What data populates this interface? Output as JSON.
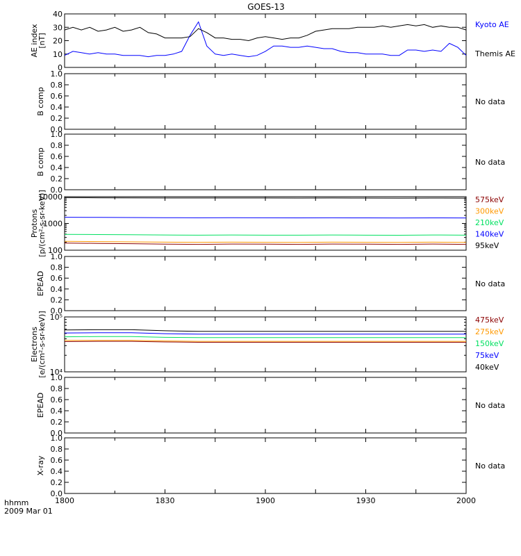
{
  "title": "GOES-13",
  "time_axis": {
    "ticks": [
      "1800",
      "1830",
      "1900",
      "1930",
      "2000"
    ],
    "corner_label": "hhmm",
    "date_label": "2009 Mar 01"
  },
  "chart_data": [
    {
      "type": "line",
      "panel": "ae",
      "ylabel": [
        "AE index",
        "[nT]"
      ],
      "ylim": [
        0,
        40
      ],
      "yticks": [
        "0",
        "10",
        "20",
        "30",
        "40"
      ],
      "x": [
        0,
        5,
        10,
        15,
        20,
        25,
        30,
        35,
        40,
        45,
        50,
        55,
        60,
        65,
        70,
        75,
        80,
        85,
        90,
        95,
        100,
        105,
        110,
        115,
        120,
        125,
        130,
        135,
        140,
        145,
        150,
        155,
        160,
        165,
        170,
        175,
        180,
        185,
        190,
        195,
        200,
        205,
        210,
        215,
        220,
        225,
        230,
        235,
        240
      ],
      "x_note": "minutes after 18:00",
      "series": [
        {
          "name": "Kyoto AE",
          "color": "#0000ff",
          "values": [
            9,
            12,
            11,
            10,
            11,
            10,
            10,
            9,
            9,
            9,
            8,
            9,
            9,
            10,
            12,
            24,
            34,
            16,
            10,
            9,
            10,
            9,
            8,
            9,
            12,
            16,
            16,
            15,
            15,
            16,
            15,
            14,
            14,
            12,
            11,
            11,
            10,
            10,
            10,
            9,
            9,
            13,
            13,
            12,
            13,
            12,
            18,
            15,
            9
          ]
        },
        {
          "name": "Themis AE",
          "color": "#000000",
          "values": [
            28,
            30,
            28,
            30,
            27,
            28,
            30,
            27,
            28,
            30,
            26,
            25,
            22,
            22,
            22,
            23,
            29,
            26,
            22,
            22,
            21,
            21,
            20,
            22,
            23,
            22,
            21,
            22,
            22,
            24,
            27,
            28,
            29,
            29,
            29,
            30,
            30,
            30,
            31,
            30,
            31,
            32,
            31,
            32,
            30,
            31,
            30,
            30,
            28
          ]
        }
      ],
      "legend": [
        "Kyoto AE",
        "Themis AE"
      ]
    },
    {
      "type": "line",
      "panel": "empty",
      "ylabel": [
        "B comp"
      ],
      "ylim": [
        0,
        1
      ],
      "yticks": [
        "0.0",
        "0.2",
        "0.4",
        "0.6",
        "0.8",
        "1.0"
      ],
      "note": "No data"
    },
    {
      "type": "line",
      "panel": "empty",
      "ylabel": [
        "B comp"
      ],
      "ylim": [
        0,
        1
      ],
      "yticks": [
        "0.0",
        "0.2",
        "0.4",
        "0.6",
        "0.8",
        "1.0"
      ],
      "note": "No data"
    },
    {
      "type": "line",
      "panel": "log",
      "ylabel": [
        "Protons",
        "[p/(cm²-s-sr-keV)]"
      ],
      "ylog": true,
      "ylim": [
        100,
        10000
      ],
      "yticks": [
        {
          "v": 100,
          "label": "100"
        },
        {
          "v": 1000,
          "label": "1000"
        },
        {
          "v": 10000,
          "label": "10000"
        }
      ],
      "x": [
        0,
        20,
        40,
        60,
        80,
        100,
        120,
        140,
        160,
        180,
        200,
        220,
        240
      ],
      "series": [
        {
          "name": "575keV",
          "color": "#8b0000",
          "values": [
            185,
            180,
            175,
            168,
            165,
            170,
            168,
            165,
            170,
            168,
            165,
            170,
            165
          ]
        },
        {
          "name": "300keV",
          "color": "#ff9900",
          "values": [
            215,
            210,
            205,
            200,
            198,
            200,
            198,
            196,
            200,
            198,
            196,
            200,
            196
          ]
        },
        {
          "name": "210keV",
          "color": "#00e060",
          "values": [
            390,
            385,
            380,
            370,
            365,
            370,
            365,
            365,
            370,
            365,
            362,
            370,
            365
          ]
        },
        {
          "name": "140keV",
          "color": "#0000ff",
          "values": [
            1700,
            1680,
            1660,
            1640,
            1620,
            1630,
            1620,
            1610,
            1620,
            1610,
            1600,
            1610,
            1600
          ]
        },
        {
          "name": "95keV",
          "color": "#000000",
          "values": [
            9200,
            9100,
            9000,
            8900,
            8900,
            8950,
            8900,
            8850,
            8900,
            8850,
            8800,
            8850,
            8800
          ]
        }
      ],
      "legend": [
        "575keV",
        "300keV",
        "210keV",
        "140keV",
        "95keV"
      ]
    },
    {
      "type": "line",
      "panel": "empty",
      "ylabel": [
        "EPEAD"
      ],
      "ylim": [
        0,
        1
      ],
      "yticks": [
        "0.0",
        "0.2",
        "0.4",
        "0.6",
        "0.8",
        "1.0"
      ],
      "note": "No data"
    },
    {
      "type": "line",
      "panel": "log",
      "ylabel": [
        "Electrons",
        "[e/(cm²-s-sr-keV)]"
      ],
      "ylog": true,
      "ylim": [
        10000,
        100000
      ],
      "yticks": [
        {
          "v": 10000,
          "label": "10⁴"
        },
        {
          "v": 100000,
          "label": "10⁵"
        }
      ],
      "x": [
        0,
        20,
        40,
        60,
        80,
        100,
        120,
        140,
        160,
        180,
        200,
        220,
        240
      ],
      "series": [
        {
          "name": "475keV",
          "color": "#8b0000",
          "values": [
            35500,
            36000,
            36000,
            35000,
            34500,
            34500,
            34500,
            34500,
            34500,
            34500,
            34500,
            34500,
            34500
          ]
        },
        {
          "name": "275keV",
          "color": "#ff9900",
          "values": [
            37500,
            37500,
            37500,
            36500,
            36000,
            36000,
            36000,
            36000,
            36000,
            36000,
            36000,
            36000,
            36000
          ]
        },
        {
          "name": "150keV",
          "color": "#00e060",
          "values": [
            43500,
            44000,
            44000,
            42500,
            42000,
            42000,
            42000,
            42000,
            42000,
            42000,
            42000,
            42000,
            42000
          ]
        },
        {
          "name": "75keV",
          "color": "#0000ff",
          "values": [
            51000,
            51500,
            51500,
            49500,
            48500,
            48500,
            48500,
            48500,
            48500,
            48500,
            48500,
            48500,
            48500
          ]
        },
        {
          "name": "40keV",
          "color": "#000000",
          "values": [
            58000,
            58500,
            58500,
            56000,
            54500,
            54500,
            54500,
            54500,
            54500,
            54500,
            54500,
            54500,
            54500
          ]
        }
      ],
      "legend": [
        "475keV",
        "275keV",
        "150keV",
        "75keV",
        "40keV"
      ]
    },
    {
      "type": "line",
      "panel": "empty",
      "ylabel": [
        "EPEAD"
      ],
      "ylim": [
        0,
        1
      ],
      "yticks": [
        "0.0",
        "0.2",
        "0.4",
        "0.6",
        "0.8",
        "1.0"
      ],
      "note": "No data"
    },
    {
      "type": "line",
      "panel": "empty",
      "ylabel": [
        "X-ray"
      ],
      "ylim": [
        0,
        1
      ],
      "yticks": [
        "0.0",
        "0.2",
        "0.4",
        "0.6",
        "0.8",
        "1.0"
      ],
      "note": "No data"
    }
  ]
}
